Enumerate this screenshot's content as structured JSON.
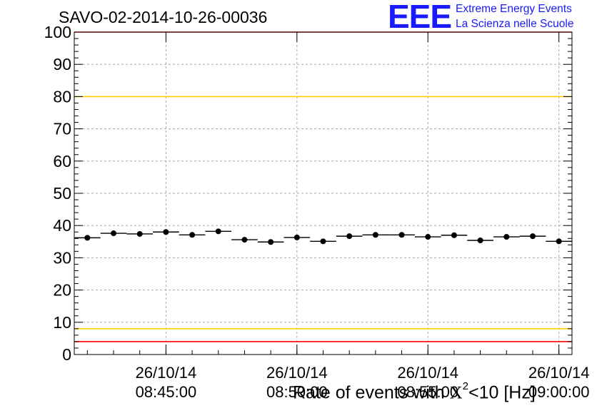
{
  "chart_data": {
    "type": "scatter",
    "title": "SAVO-02-2014-10-26-00036",
    "xlabel_parts": {
      "prefix": "Rate of events with ",
      "chi": "X",
      "sup": "2",
      "suffix": "<10 [Hz]"
    },
    "ylim": [
      0,
      100
    ],
    "y_ticks": [
      "0",
      "10",
      "20",
      "30",
      "40",
      "50",
      "60",
      "70",
      "80",
      "90",
      "100"
    ],
    "x_tick_labels": [
      {
        "date": "26/10/14",
        "time": "08:45:00"
      },
      {
        "date": "26/10/14",
        "time": "08:50:00"
      },
      {
        "date": "26/10/14",
        "time": "08:55:00"
      },
      {
        "date": "26/10/14",
        "time": "09:00:00"
      }
    ],
    "grid": true,
    "reference_lines": [
      {
        "value": 100,
        "color": "#ff0000"
      },
      {
        "value": 80,
        "color": "#ffcc00"
      },
      {
        "value": 8,
        "color": "#ffcc00"
      },
      {
        "value": 4,
        "color": "#ff0000"
      }
    ],
    "series": [
      {
        "marker_color": "#000000",
        "values": [
          36.2,
          37.6,
          37.4,
          38.0,
          37.1,
          38.2,
          35.6,
          34.9,
          36.3,
          35.1,
          36.7,
          37.1,
          37.1,
          36.5,
          37.0,
          35.4,
          36.5,
          36.7,
          35.1
        ]
      }
    ]
  },
  "logo": {
    "mark": "EEE",
    "line1": "Extreme Energy Events",
    "line2": "La Scienza nelle Scuole"
  }
}
